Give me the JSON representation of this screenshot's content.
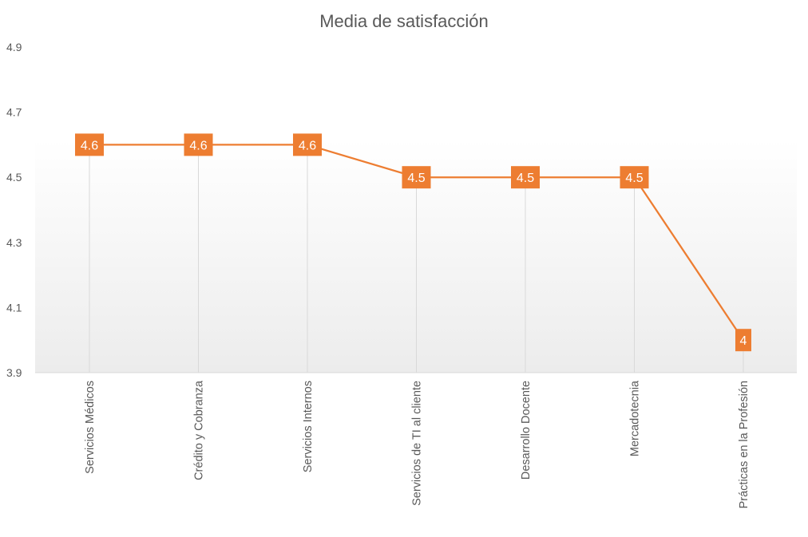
{
  "chart_data": {
    "type": "line",
    "title": "Media de satisfacción",
    "xlabel": "",
    "ylabel": "",
    "categories": [
      "Servicios Médicos",
      "Crédito y Cobranza",
      "Servicios Internos",
      "Servicios de TI al cliente",
      "Desarrollo Docente",
      "Mercadotecnia",
      "Prácticas en la Profesión"
    ],
    "series": [
      {
        "values": [
          4.6,
          4.6,
          4.6,
          4.5,
          4.5,
          4.5,
          4
        ],
        "data_labels": [
          "4.6",
          "4.6",
          "4.6",
          "4.5",
          "4.5",
          "4.5",
          "4"
        ]
      }
    ],
    "ylim": [
      3.9,
      4.9
    ],
    "yticks": [
      "3.9",
      "4.1",
      "4.3",
      "4.5",
      "4.7",
      "4.9"
    ],
    "grid": "vertical drop lines only",
    "legend": "none",
    "colors": {
      "series": "#ED7D31",
      "drop_lines": "#D9D9D9",
      "axis": "#D9D9D9",
      "text": "#595959",
      "data_label_text": "#FFFFFF"
    }
  }
}
